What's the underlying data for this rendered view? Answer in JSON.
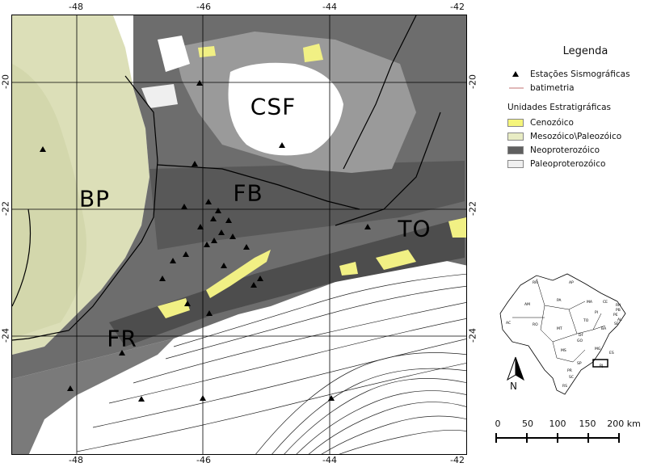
{
  "map": {
    "labels": [
      {
        "text": "CSF",
        "key": "csf"
      },
      {
        "text": "BP",
        "key": "bp"
      },
      {
        "text": "FB",
        "key": "fb"
      },
      {
        "text": "TO",
        "key": "to"
      },
      {
        "text": "FR",
        "key": "fr"
      }
    ],
    "lon_ticks": [
      "-48",
      "-46",
      "-44",
      "-42"
    ],
    "lat_ticks": [
      "-20",
      "-22",
      "-24"
    ],
    "colors": {
      "cenozoico": "#f3f27a",
      "mesozoico": "#e6e8c2",
      "neoproterozoico": "#6b6b6b",
      "paleoproterozoico": "#efefef",
      "grid": "#000000",
      "bathymetry": "#222222"
    }
  },
  "legend": {
    "title": "Legenda",
    "stations": "Estações Sismográficas",
    "bathymetry": "batimetria",
    "units_title": "Unidades Estratigráficas",
    "units": [
      {
        "label": "Cenozóico",
        "color": "#f5f57a"
      },
      {
        "label": "Mesozóico\\Paleozóico",
        "color": "#e8ecc4"
      },
      {
        "label": "Neoproterozóico",
        "color": "#5f5f5f"
      },
      {
        "label": "Paleoproterozóico",
        "color": "#efefef"
      }
    ]
  },
  "north_arrow": {
    "label": "N"
  },
  "scale": {
    "labels": [
      "0",
      "50",
      "100",
      "150",
      "200 km"
    ]
  },
  "inset": {
    "states": [
      "RR",
      "AP",
      "AM",
      "PA",
      "MA",
      "CE",
      "RN",
      "PB",
      "PE",
      "AL",
      "SE",
      "PI",
      "TO",
      "BA",
      "AC",
      "RO",
      "MT",
      "DF",
      "GO",
      "MG",
      "ES",
      "MS",
      "SP",
      "RJ",
      "PR",
      "SC",
      "RS"
    ]
  }
}
